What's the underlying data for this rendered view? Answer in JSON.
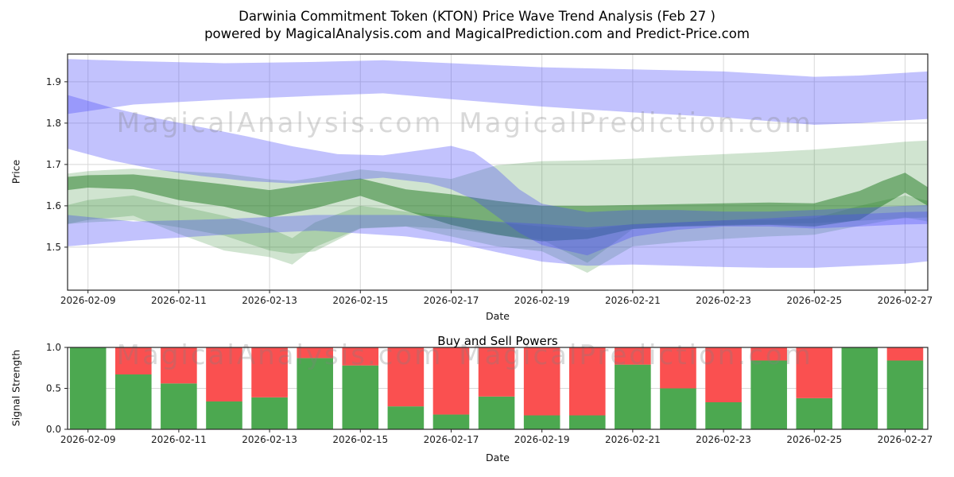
{
  "figure": {
    "title_line1": "Darwinia Commitment Token (KTON) Price Wave Trend Analysis (Feb 27 )",
    "title_line2": "powered by MagicalAnalysis.com and MagicalPrediction.com and Predict-Price.com"
  },
  "watermarks": [
    "MagicalAnalysis.com",
    "MagicalPrediction.com"
  ],
  "colors": {
    "blue_band": "rgba(70,70,250,0.33)",
    "green_band": "rgba(40,130,40,0.22)",
    "green_band_dark": "rgba(30,120,30,0.5)",
    "bar_green": "#4ca850",
    "bar_red": "#fa5050",
    "grid": "#d8d8d8",
    "spine": "#262626",
    "tick_text": "#1a1a1a",
    "watermark": "rgba(128,128,128,0.3)"
  },
  "chart_data": [
    {
      "type": "area",
      "name": "price-wave-trend",
      "xlabel": "Date",
      "ylabel": "Price",
      "xlim": [
        8.55,
        27.5
      ],
      "ylim": [
        1.396,
        1.967
      ],
      "yticks": [
        1.5,
        1.6,
        1.7,
        1.8,
        1.9
      ],
      "xticks": {
        "days": [
          9,
          11,
          13,
          15,
          17,
          19,
          21,
          23,
          25,
          27
        ],
        "labels": [
          "2026-02-09",
          "2026-02-11",
          "2026-02-13",
          "2026-02-15",
          "2026-02-17",
          "2026-02-19",
          "2026-02-21",
          "2026-02-23",
          "2026-02-25",
          "2026-02-27"
        ]
      },
      "bands": [
        {
          "name": "green-wide-band",
          "color_key": "green_band",
          "days": [
            8.55,
            9,
            10,
            11,
            12,
            13,
            13.5,
            14,
            15,
            16,
            17,
            18,
            19,
            20,
            21,
            22,
            23,
            24,
            25,
            26,
            27,
            27.5
          ],
          "upper": [
            1.678,
            1.684,
            1.69,
            1.684,
            1.678,
            1.664,
            1.66,
            1.668,
            1.688,
            1.678,
            1.665,
            1.698,
            1.708,
            1.71,
            1.714,
            1.72,
            1.725,
            1.73,
            1.736,
            1.745,
            1.755,
            1.758
          ],
          "lower": [
            1.556,
            1.56,
            1.565,
            1.548,
            1.528,
            1.492,
            1.484,
            1.49,
            1.545,
            1.55,
            1.544,
            1.53,
            1.518,
            1.462,
            1.544,
            1.55,
            1.554,
            1.556,
            1.558,
            1.564,
            1.57,
            1.572
          ]
        },
        {
          "name": "green-low-band",
          "color_key": "green_band",
          "days": [
            8.55,
            9,
            10,
            11,
            12,
            13,
            13.5,
            14,
            15,
            16,
            17,
            18,
            19,
            20,
            21,
            22,
            23,
            24,
            25,
            26,
            27,
            27.5
          ],
          "upper": [
            1.602,
            1.614,
            1.625,
            1.6,
            1.576,
            1.546,
            1.522,
            1.56,
            1.6,
            1.586,
            1.575,
            1.56,
            1.55,
            1.542,
            1.556,
            1.56,
            1.565,
            1.566,
            1.57,
            1.6,
            1.625,
            1.612
          ],
          "lower": [
            1.556,
            1.566,
            1.576,
            1.532,
            1.492,
            1.476,
            1.458,
            1.5,
            1.546,
            1.55,
            1.526,
            1.502,
            1.49,
            1.438,
            1.502,
            1.512,
            1.52,
            1.526,
            1.53,
            1.552,
            1.572,
            1.562
          ]
        },
        {
          "name": "green-dark-band",
          "color_key": "green_band_dark",
          "days": [
            8.55,
            9,
            10,
            11,
            12,
            13,
            14,
            15,
            16,
            17,
            18,
            19,
            20,
            21,
            22,
            23,
            24,
            25,
            26,
            26.5,
            27,
            27.5
          ],
          "upper": [
            1.67,
            1.674,
            1.676,
            1.664,
            1.652,
            1.638,
            1.654,
            1.666,
            1.64,
            1.628,
            1.612,
            1.6,
            1.6,
            1.602,
            1.604,
            1.606,
            1.608,
            1.606,
            1.636,
            1.66,
            1.68,
            1.645
          ],
          "lower": [
            1.638,
            1.644,
            1.64,
            1.614,
            1.598,
            1.572,
            1.594,
            1.624,
            1.588,
            1.554,
            1.53,
            1.514,
            1.52,
            1.544,
            1.55,
            1.552,
            1.554,
            1.55,
            1.566,
            1.6,
            1.632,
            1.6
          ]
        },
        {
          "name": "blue-upper-band",
          "color_key": "blue_band",
          "days": [
            8.55,
            10,
            12,
            14,
            15.5,
            17,
            19,
            21,
            23,
            25,
            26,
            27.5
          ],
          "upper": [
            1.955,
            1.95,
            1.945,
            1.948,
            1.952,
            1.945,
            1.935,
            1.93,
            1.925,
            1.912,
            1.915,
            1.925
          ],
          "lower": [
            1.822,
            1.845,
            1.857,
            1.866,
            1.872,
            1.858,
            1.84,
            1.826,
            1.814,
            1.796,
            1.8,
            1.81
          ]
        },
        {
          "name": "blue-mid-band",
          "color_key": "blue_band",
          "days": [
            8.55,
            9.5,
            10.5,
            11.5,
            12.5,
            13.5,
            14.5,
            15.5,
            16.5,
            17,
            17.5,
            18,
            18.5,
            19,
            20,
            21,
            22,
            23,
            24,
            25,
            26,
            27,
            27.5
          ],
          "upper": [
            1.868,
            1.838,
            1.812,
            1.79,
            1.768,
            1.744,
            1.725,
            1.722,
            1.737,
            1.745,
            1.73,
            1.69,
            1.64,
            1.605,
            1.585,
            1.59,
            1.59,
            1.586,
            1.586,
            1.59,
            1.595,
            1.6,
            1.602
          ],
          "lower": [
            1.738,
            1.71,
            1.688,
            1.672,
            1.66,
            1.654,
            1.66,
            1.668,
            1.655,
            1.64,
            1.615,
            1.575,
            1.535,
            1.505,
            1.48,
            1.525,
            1.542,
            1.55,
            1.55,
            1.545,
            1.55,
            1.555,
            1.556
          ]
        },
        {
          "name": "blue-lower-band",
          "color_key": "blue_band",
          "days": [
            8.55,
            10,
            12,
            14,
            16,
            17,
            18,
            19,
            20,
            21,
            22,
            23,
            24,
            25,
            26,
            27,
            27.5
          ],
          "upper": [
            1.578,
            1.562,
            1.568,
            1.578,
            1.578,
            1.572,
            1.562,
            1.556,
            1.548,
            1.555,
            1.56,
            1.565,
            1.57,
            1.576,
            1.58,
            1.585,
            1.586
          ],
          "lower": [
            1.502,
            1.516,
            1.53,
            1.54,
            1.526,
            1.512,
            1.488,
            1.465,
            1.455,
            1.458,
            1.455,
            1.452,
            1.45,
            1.45,
            1.455,
            1.46,
            1.466
          ]
        }
      ]
    },
    {
      "type": "bar",
      "name": "buy-sell-powers",
      "title": "Buy and Sell Powers",
      "xlabel": "Date",
      "ylabel": "Signal Strength",
      "ylim": [
        0,
        1
      ],
      "yticks": [
        0.0,
        0.5,
        1.0
      ],
      "xticks": {
        "days": [
          9,
          11,
          13,
          15,
          17,
          19,
          21,
          23,
          25,
          27
        ],
        "labels": [
          "2026-02-09",
          "2026-02-11",
          "2026-02-13",
          "2026-02-15",
          "2026-02-17",
          "2026-02-19",
          "2026-02-21",
          "2026-02-23",
          "2026-02-25",
          "2026-02-27"
        ]
      },
      "categories": [
        "2026-02-09",
        "2026-02-10",
        "2026-02-11",
        "2026-02-12",
        "2026-02-13",
        "2026-02-14",
        "2026-02-15",
        "2026-02-16",
        "2026-02-17",
        "2026-02-18",
        "2026-02-19",
        "2026-02-20",
        "2026-02-21",
        "2026-02-22",
        "2026-02-23",
        "2026-02-24",
        "2026-02-25",
        "2026-02-26",
        "2026-02-27"
      ],
      "series": [
        {
          "name": "Buy",
          "color_key": "bar_green",
          "values": [
            1.0,
            0.67,
            0.56,
            0.34,
            0.39,
            0.87,
            0.78,
            0.28,
            0.18,
            0.4,
            0.17,
            0.17,
            0.79,
            0.5,
            0.33,
            0.84,
            0.38,
            1.0,
            0.84
          ]
        },
        {
          "name": "Sell",
          "color_key": "bar_red",
          "values": [
            0.0,
            0.33,
            0.44,
            0.66,
            0.61,
            0.13,
            0.22,
            0.72,
            0.82,
            0.6,
            0.83,
            0.83,
            0.21,
            0.5,
            0.67,
            0.16,
            0.62,
            0.0,
            0.16
          ]
        }
      ]
    }
  ]
}
